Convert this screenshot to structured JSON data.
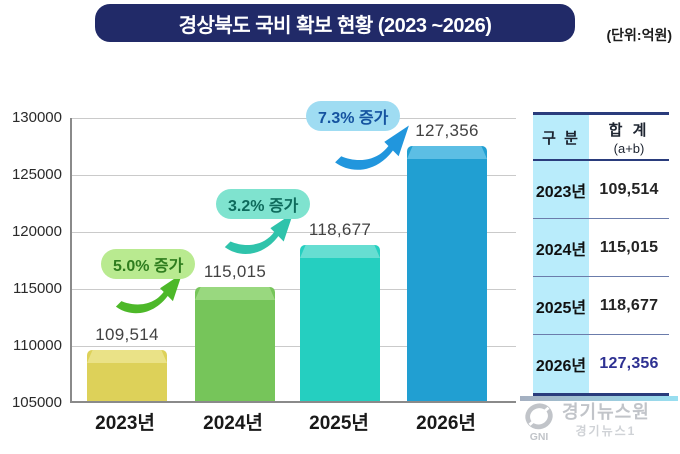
{
  "header": {
    "title": "경상북도 국비 확보 현황 (2023 ~2026)",
    "unit_label": "(단위:억원)"
  },
  "chart_data": {
    "type": "bar",
    "title": "경상북도 국비 확보 현황 (2023 ~2026)",
    "unit": "억원",
    "categories": [
      "2023년",
      "2024년",
      "2025년",
      "2026년"
    ],
    "values": [
      109514,
      115015,
      118677,
      127356
    ],
    "value_labels": [
      "109,514",
      "115,015",
      "118,677",
      "127,356"
    ],
    "bar_colors": [
      "#ddd159",
      "#76c55a",
      "#25cfc0",
      "#219fd2"
    ],
    "bar_top_colors": [
      "#eae287",
      "#99d87f",
      "#66ded2",
      "#5cbee4"
    ],
    "growth_annotations": [
      {
        "label": "5.0% 증가",
        "from": "2023년",
        "to": "2024년",
        "bg": "#b9ea90",
        "fg": "#2e7d1e",
        "arrow_color": "#4db829"
      },
      {
        "label": "3.2% 증가",
        "from": "2024년",
        "to": "2025년",
        "bg": "#7fe3cf",
        "fg": "#0e6b5c",
        "arrow_color": "#2fc3ab"
      },
      {
        "label": "7.3% 증가",
        "from": "2025년",
        "to": "2026년",
        "bg": "#9fdcf2",
        "fg": "#1553a0",
        "arrow_color": "#2196dd"
      }
    ],
    "xlabel": "",
    "ylabel": "",
    "ylim": [
      105000,
      130000
    ],
    "ytick_interval": 5000,
    "yticks": [
      "105000",
      "110000",
      "115000",
      "120000",
      "125000",
      "130000"
    ],
    "grid": true,
    "legend": false
  },
  "table": {
    "col_headers": {
      "category": "구 분",
      "total": "합 계",
      "total_sub": "(a+b)"
    },
    "rows": [
      {
        "year": "2023년",
        "total": "109,514"
      },
      {
        "year": "2024년",
        "total": "115,015"
      },
      {
        "year": "2025년",
        "total": "118,677"
      },
      {
        "year": "2026년",
        "total": "127,356"
      }
    ],
    "highlight_color": "#2e3192",
    "first_col_bg": "#b9ecfb"
  },
  "watermark": {
    "logo_text": "GNI",
    "name": "경기뉴스원",
    "subname": "경기뉴스1"
  }
}
